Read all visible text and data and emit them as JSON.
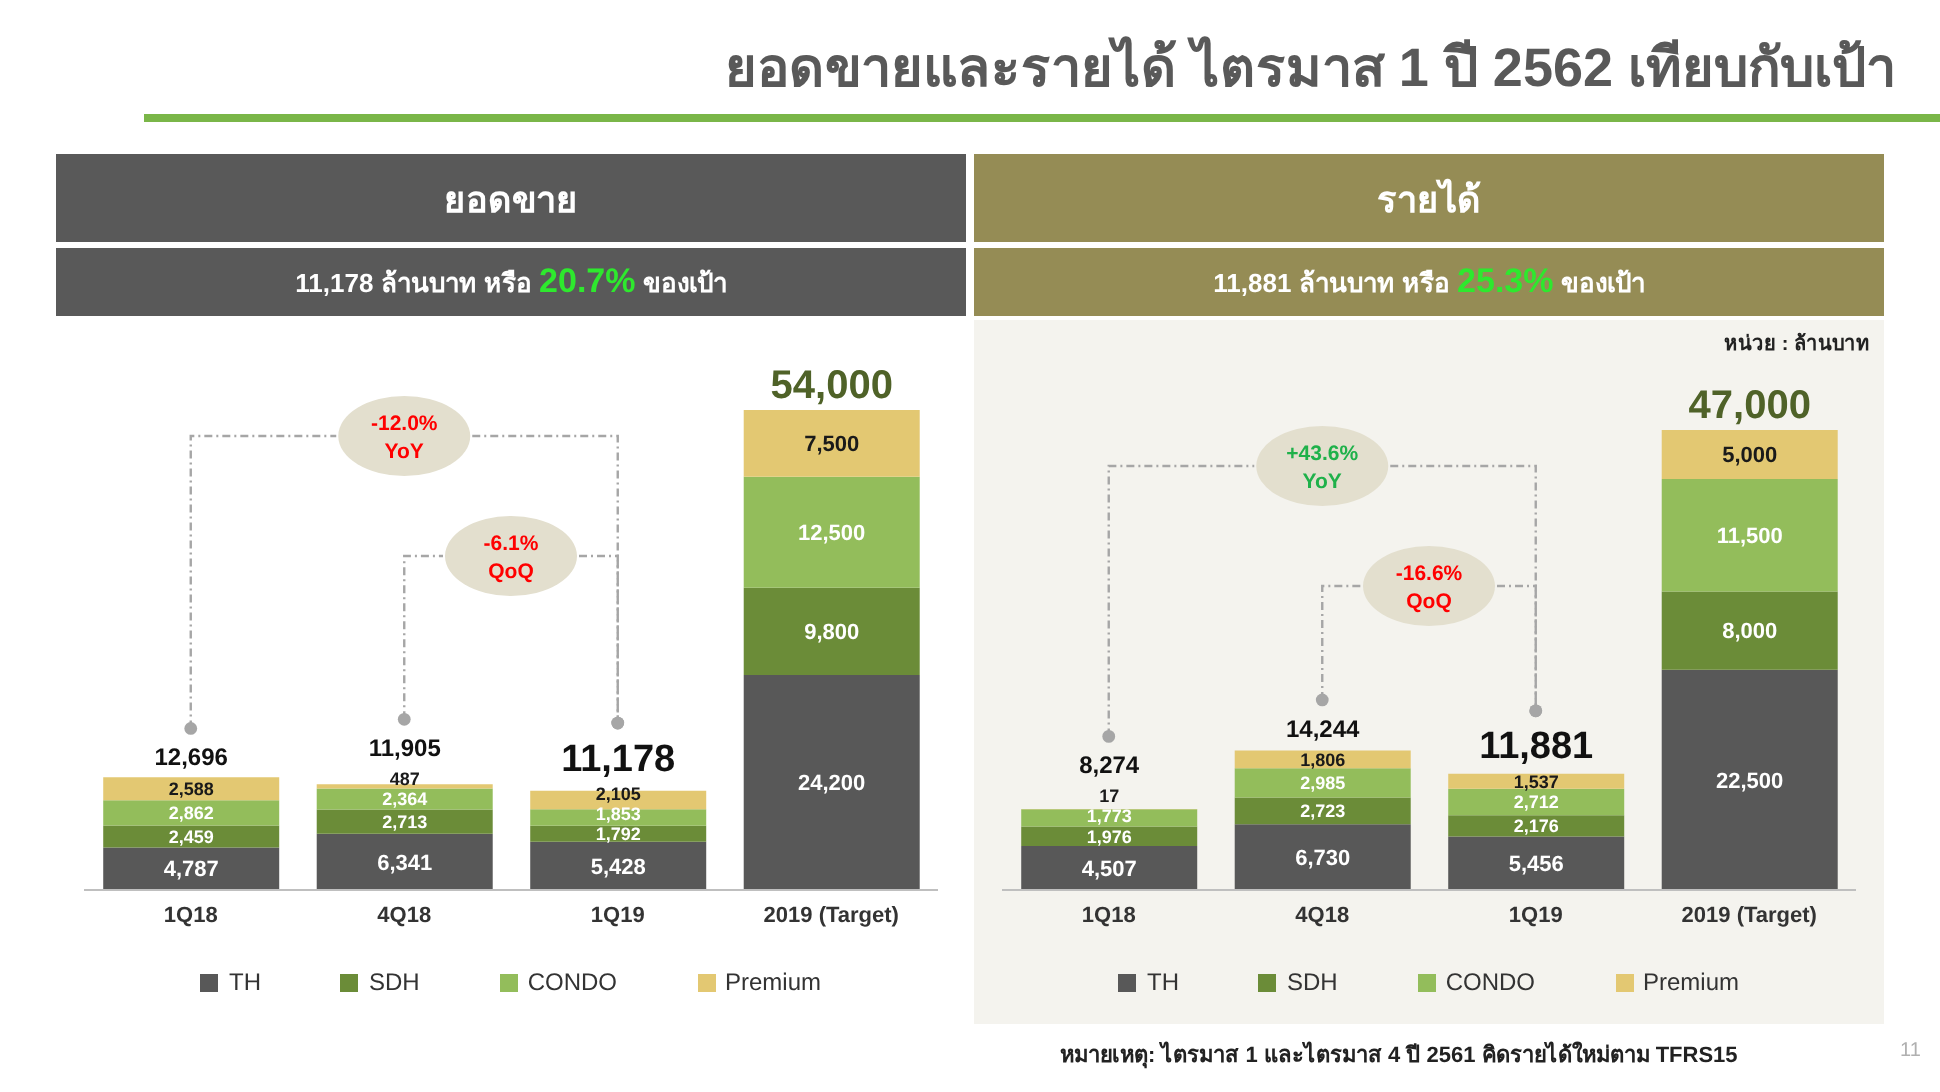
{
  "chart_data": [
    {
      "type": "bar",
      "title": "ยอดขาย",
      "subtitle": "11,178 ล้านบาท หรือ 20.7% ของเป้า",
      "categories": [
        "1Q18",
        "4Q18",
        "1Q19",
        "2019 (Target)"
      ],
      "stacked": true,
      "series": [
        {
          "name": "TH",
          "color": "#585858",
          "values": [
            4787,
            6341,
            5428,
            24200
          ],
          "value_labels": [
            "4,787",
            "6,341",
            "5,428",
            "24,200"
          ]
        },
        {
          "name": "SDH",
          "color": "#6b8c38",
          "values": [
            2459,
            2713,
            1792,
            9800
          ],
          "value_labels": [
            "2,459",
            "2,713",
            "1,792",
            "9,800"
          ]
        },
        {
          "name": "CONDO",
          "color": "#93bd5b",
          "values": [
            2862,
            2364,
            1853,
            12500
          ],
          "value_labels": [
            "2,862",
            "2,364",
            "1,853",
            "12,500"
          ]
        },
        {
          "name": "Premium",
          "color": "#e3c872",
          "values": [
            2588,
            487,
            2105,
            7500
          ],
          "value_labels": [
            "2,588",
            "487",
            "2,105",
            "7,500"
          ]
        }
      ],
      "totals": [
        "12,696",
        "11,905",
        "11,178",
        "54,000"
      ],
      "legend": "bottom",
      "annotations": [
        "-12.0% YoY",
        "-6.1% QoQ",
        "ยอดขายและรายได้ ไตรมาส 1 ปี 2562 เทียบกับเป้า"
      ]
    },
    {
      "type": "bar",
      "title": "รายได้",
      "subtitle": "11,881 ล้านบาท หรือ 25.3% ของเป้า",
      "categories": [
        "1Q18",
        "4Q18",
        "1Q19",
        "2019 (Target)"
      ],
      "stacked": true,
      "series": [
        {
          "name": "TH",
          "color": "#585858",
          "values": [
            4507,
            6730,
            5456,
            22500
          ],
          "value_labels": [
            "4,507",
            "6,730",
            "5,456",
            "22,500"
          ]
        },
        {
          "name": "SDH",
          "color": "#6b8c38",
          "values": [
            1976,
            2723,
            2176,
            8000
          ],
          "value_labels": [
            "1,976",
            "2,723",
            "2,176",
            "8,000"
          ]
        },
        {
          "name": "CONDO",
          "color": "#93bd5b",
          "values": [
            1773,
            2985,
            2712,
            11500
          ],
          "value_labels": [
            "1,773",
            "2,985",
            "2,712",
            "11,500"
          ]
        },
        {
          "name": "Premium",
          "color": "#e3c872",
          "values": [
            17,
            1806,
            1537,
            5000
          ],
          "value_labels": [
            "17",
            "1,806",
            "1,537",
            "5,000"
          ]
        }
      ],
      "totals": [
        "8,274",
        "14,244",
        "11,881",
        "47,000"
      ],
      "legend": "bottom",
      "annotations": [
        "+43.6% YoY",
        "-16.6% QoQ",
        "หน่วย : ล้านบาท",
        "หมายเหตุ: ไตรมาส 1 และไตรมาส 4 ปี 2561 คิดรายได้ใหม่ตาม TFRS15",
        "11"
      ]
    }
  ]
}
